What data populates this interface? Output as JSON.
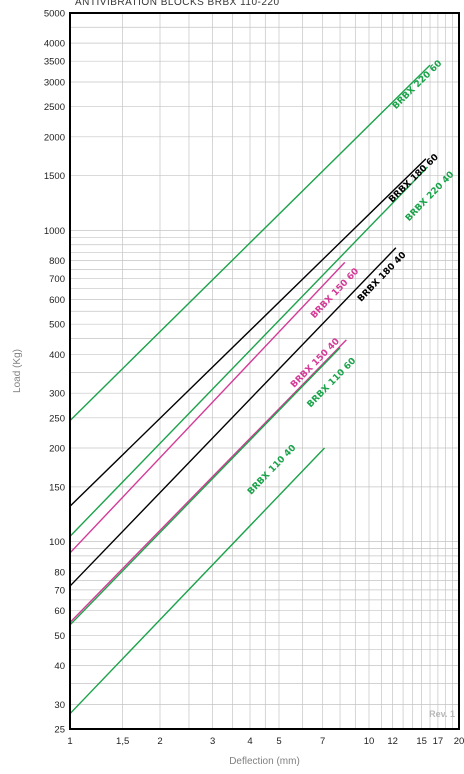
{
  "chart_data": {
    "type": "line",
    "title": "ANTIVIBRATION BLOCKS BRBX 110-220",
    "xlabel": "Deflection (mm)",
    "ylabel": "Load (Kg)",
    "x_scale": "log",
    "y_scale": "log",
    "xlim": [
      1,
      20
    ],
    "ylim": [
      25,
      5000
    ],
    "grid": true,
    "x_ticks": [
      1,
      1.5,
      2,
      3,
      4,
      5,
      7,
      10,
      12,
      15,
      17,
      20
    ],
    "x_tick_labels": [
      "1",
      "1,5",
      "2",
      "3",
      "4",
      "5",
      "7",
      "10",
      "12",
      "15",
      "17",
      "20"
    ],
    "x_grid": [
      1,
      1.5,
      2,
      2.5,
      3,
      3.5,
      4,
      4.5,
      5,
      6,
      7,
      8,
      9,
      10,
      11,
      12,
      13,
      14,
      15,
      16,
      17,
      18,
      19,
      20
    ],
    "y_ticks": [
      25,
      30,
      40,
      50,
      60,
      70,
      80,
      100,
      150,
      200,
      250,
      300,
      400,
      500,
      600,
      700,
      800,
      1000,
      1500,
      2000,
      2500,
      3000,
      3500,
      4000,
      5000
    ],
    "y_grid": [
      25,
      30,
      35,
      40,
      45,
      50,
      55,
      60,
      65,
      70,
      75,
      80,
      85,
      90,
      95,
      100,
      150,
      200,
      250,
      300,
      350,
      400,
      450,
      500,
      550,
      600,
      650,
      700,
      750,
      800,
      850,
      900,
      950,
      1000,
      1500,
      2000,
      2500,
      3000,
      3500,
      4000,
      4500,
      5000
    ],
    "series": [
      {
        "name": "BRBX 220 60",
        "color": "#1aa34a",
        "x": [
          1,
          16
        ],
        "y": [
          245,
          3400
        ],
        "label_at": [
          14.7,
          2900
        ]
      },
      {
        "name": "BRBX 180 60",
        "color": "#000000",
        "x": [
          1,
          15.5
        ],
        "y": [
          130,
          1700
        ],
        "label_at": [
          14.3,
          1450
        ]
      },
      {
        "name": "BRBX 220 40",
        "color": "#1aa34a",
        "x": [
          1,
          15.7
        ],
        "y": [
          104,
          1600
        ],
        "label_at": [
          16.2,
          1270
        ]
      },
      {
        "name": "BRBX 150 60",
        "color": "#d43a96",
        "x": [
          1,
          8.3
        ],
        "y": [
          92,
          790
        ],
        "label_at": [
          7.8,
          620
        ]
      },
      {
        "name": "BRBX 180 40",
        "color": "#000000",
        "x": [
          1,
          12.3
        ],
        "y": [
          72,
          880
        ],
        "label_at": [
          11.2,
          700
        ]
      },
      {
        "name": "BRBX 150 40",
        "color": "#d43a96",
        "x": [
          1,
          8.4
        ],
        "y": [
          55,
          445
        ],
        "label_at": [
          6.7,
          370
        ]
      },
      {
        "name": "BRBX 110 60",
        "color": "#1aa34a",
        "x": [
          1,
          8.0
        ],
        "y": [
          54,
          420
        ],
        "label_at": [
          7.6,
          320
        ]
      },
      {
        "name": "BRBX 110 40",
        "color": "#1aa34a",
        "x": [
          1,
          7.1
        ],
        "y": [
          28,
          200
        ],
        "label_at": [
          4.8,
          168
        ]
      }
    ],
    "annotation": "Rev. 1"
  }
}
